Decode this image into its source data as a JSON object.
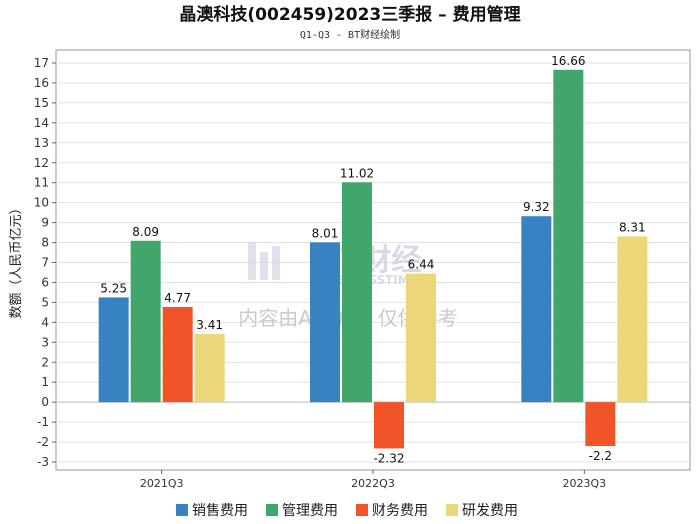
{
  "chart_data": {
    "type": "bar",
    "title": "晶澳科技(002459)2023三季报 – 费用管理",
    "subtitle": "Q1-Q3 - BT财经绘制",
    "xlabel": "",
    "ylabel": "数额（人民币亿元）",
    "ylim": [
      -3,
      17
    ],
    "yticks": [
      -3,
      -2,
      -1,
      0,
      1,
      2,
      3,
      4,
      5,
      6,
      7,
      8,
      9,
      10,
      11,
      12,
      13,
      14,
      15,
      16,
      17
    ],
    "categories": [
      "2021Q3",
      "2022Q3",
      "2023Q3"
    ],
    "series": [
      {
        "name": "销售费用",
        "color": "#3783c2",
        "values": [
          5.25,
          8.01,
          9.32
        ]
      },
      {
        "name": "管理费用",
        "color": "#41a66b",
        "values": [
          8.09,
          11.02,
          16.66
        ]
      },
      {
        "name": "财务费用",
        "color": "#f2542a",
        "values": [
          4.77,
          -2.32,
          -2.2
        ]
      },
      {
        "name": "研发费用",
        "color": "#ecd778",
        "values": [
          3.41,
          6.44,
          8.31
        ]
      }
    ],
    "watermark": {
      "logo_text": "BT财经",
      "logo_subtext": "BUSINESSTIMES",
      "notice": "内容由AI生成，仅供参考"
    }
  }
}
